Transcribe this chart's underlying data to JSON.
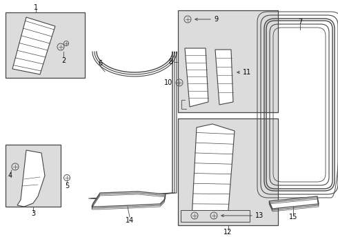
{
  "background_color": "#ffffff",
  "box_fill": "#dcdcdc",
  "line_color": "#444444",
  "text_color": "#000000",
  "bolt_color": "#555555",
  "fig_w": 4.9,
  "fig_h": 3.6,
  "dpi": 100
}
